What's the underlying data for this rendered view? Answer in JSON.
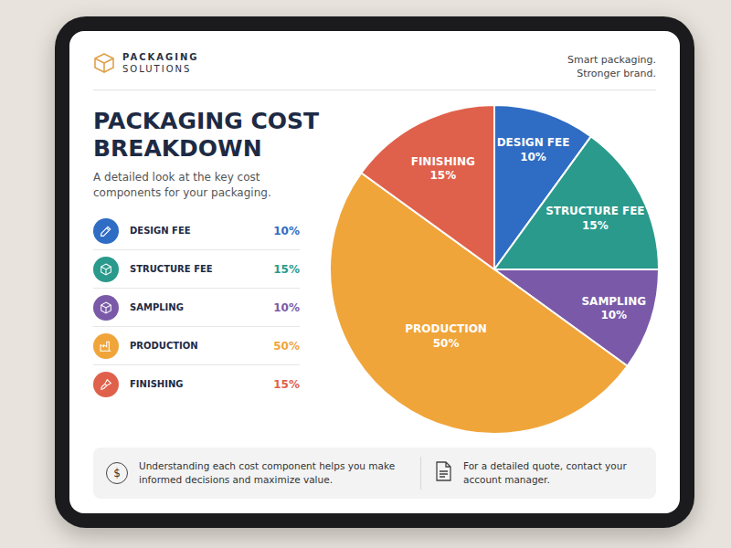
{
  "header": {
    "brand": [
      "PACKAGING",
      "SOLUTIONS"
    ],
    "tagline": [
      "Smart packaging.",
      "Stronger brand."
    ]
  },
  "chart_data": {
    "type": "pie",
    "title": "PACKAGING COST BREAKDOWN",
    "subtitle": "A detailed look at the key cost components for your packaging.",
    "categories": [
      "DESIGN FEE",
      "STRUCTURE FEE",
      "SAMPLING",
      "PRODUCTION",
      "FINISHING"
    ],
    "values": [
      10,
      15,
      10,
      50,
      15
    ],
    "value_labels": [
      "10%",
      "15%",
      "10%",
      "50%",
      "15%"
    ],
    "colors": [
      "#2f6cc4",
      "#2a9a8c",
      "#7a5aa8",
      "#f0a53a",
      "#e0614b"
    ],
    "data_labels": true,
    "legend": "left"
  },
  "footer": {
    "icon_text": "$",
    "notes": [
      "Understanding each cost component helps you make informed decisions and maximize value.",
      "For a detailed quote, contact your account manager."
    ]
  }
}
